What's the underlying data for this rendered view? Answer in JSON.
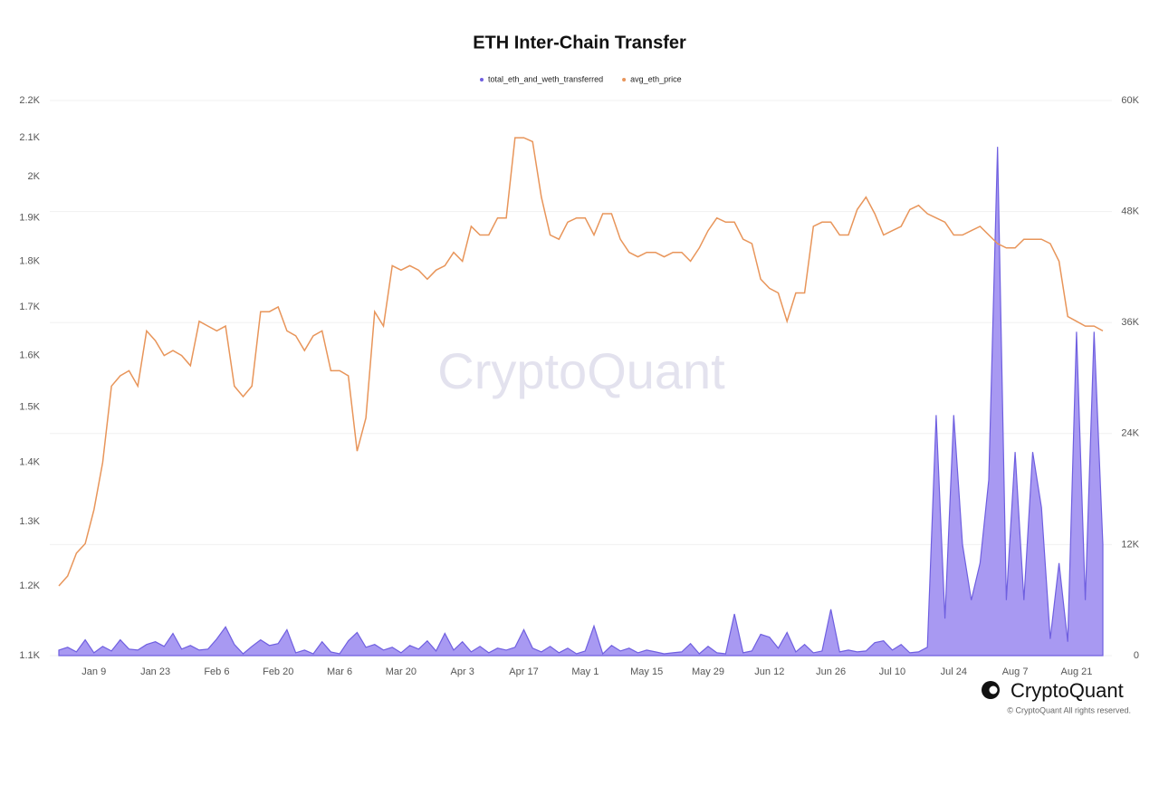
{
  "chart_data": {
    "type": "line-area",
    "title": "ETH Inter-Chain Transfer",
    "watermark": "CryptoQuant",
    "brand": "CryptoQuant",
    "copyright": "© CryptoQuant All rights reserved.",
    "yscale": "log",
    "grid": true,
    "legend": "top",
    "categories": [
      null,
      null,
      null,
      null,
      "Jan 9",
      null,
      null,
      null,
      null,
      null,
      null,
      "Jan 23",
      null,
      null,
      null,
      null,
      null,
      null,
      "Feb 6",
      null,
      null,
      null,
      null,
      null,
      null,
      "Feb 20",
      null,
      null,
      null,
      null,
      null,
      null,
      "Mar 6",
      null,
      null,
      null,
      null,
      null,
      null,
      "Mar 20",
      null,
      null,
      null,
      null,
      null,
      null,
      "Apr 3",
      null,
      null,
      null,
      null,
      null,
      null,
      "Apr 17",
      null,
      null,
      null,
      null,
      null,
      null,
      "May 1",
      null,
      null,
      null,
      null,
      null,
      null,
      "May 15",
      null,
      null,
      null,
      null,
      null,
      null,
      "May 29",
      null,
      null,
      null,
      null,
      null,
      null,
      "Jun 12",
      null,
      null,
      null,
      null,
      null,
      null,
      "Jun 26",
      null,
      null,
      null,
      null,
      null,
      null,
      "Jul 10",
      null,
      null,
      null,
      null,
      null,
      null,
      "Jul 24",
      null,
      null,
      null,
      null,
      null,
      null,
      "Aug 7",
      null,
      null,
      null,
      null,
      null,
      null,
      "Aug 21",
      null,
      null,
      null
    ],
    "ylim": [
      1100,
      2200
    ],
    "yticks": [
      {
        "value": 1100,
        "label": "1.1K"
      },
      {
        "value": 1200,
        "label": "1.2K"
      },
      {
        "value": 1300,
        "label": "1.3K"
      },
      {
        "value": 1400,
        "label": "1.4K"
      },
      {
        "value": 1500,
        "label": "1.5K"
      },
      {
        "value": 1600,
        "label": "1.6K"
      },
      {
        "value": 1700,
        "label": "1.7K"
      },
      {
        "value": 1800,
        "label": "1.8K"
      },
      {
        "value": 1900,
        "label": "1.9K"
      },
      {
        "value": 2000,
        "label": "2K"
      },
      {
        "value": 2100,
        "label": "2.1K"
      },
      {
        "value": 2200,
        "label": "2.2K"
      }
    ],
    "y2lim": [
      0,
      60000
    ],
    "y2ticks": [
      0,
      {
        "value": 12000,
        "label": "12K"
      },
      {
        "value": 24000,
        "label": "24K"
      },
      {
        "value": 36000,
        "label": "36K"
      },
      {
        "value": 48000,
        "label": "48K"
      },
      {
        "value": 60000,
        "label": "60K"
      }
    ],
    "series": [
      {
        "name": "total_eth_and_weth_transferred",
        "color": "#6f5fe0",
        "fill": "#a899f2",
        "axis": "y2",
        "values": [
          600,
          900,
          400,
          1700,
          300,
          1000,
          500,
          1700,
          700,
          600,
          1200,
          1500,
          1000,
          2400,
          700,
          1100,
          600,
          700,
          1800,
          3100,
          1200,
          200,
          1000,
          1700,
          1100,
          1300,
          2800,
          300,
          600,
          200,
          1500,
          400,
          200,
          1600,
          2500,
          900,
          1200,
          600,
          900,
          300,
          1100,
          700,
          1600,
          500,
          2400,
          600,
          1500,
          400,
          1000,
          300,
          800,
          600,
          900,
          2800,
          800,
          400,
          1000,
          300,
          800,
          200,
          500,
          3200,
          200,
          1100,
          500,
          800,
          300,
          600,
          400,
          200,
          300,
          400,
          1300,
          200,
          1000,
          300,
          200,
          4500,
          300,
          500,
          2300,
          2000,
          800,
          2500,
          400,
          1200,
          300,
          500,
          5000,
          400,
          600,
          400,
          500,
          1400,
          1600,
          600,
          1200,
          300,
          400,
          900,
          26000,
          4000,
          26000,
          12000,
          6000,
          10000,
          19000,
          55000,
          6000,
          22000,
          6000,
          22000,
          16000,
          1800,
          10000,
          1500,
          35000,
          6000,
          35000,
          12000
        ]
      },
      {
        "name": "avg_eth_price",
        "color": "#e8955a",
        "axis": "y",
        "values": [
          1200,
          1215,
          1250,
          1265,
          1320,
          1400,
          1540,
          1560,
          1570,
          1540,
          1650,
          1630,
          1600,
          1610,
          1600,
          1580,
          1670,
          1660,
          1650,
          1660,
          1540,
          1520,
          1540,
          1690,
          1690,
          1700,
          1650,
          1640,
          1610,
          1640,
          1650,
          1570,
          1570,
          1560,
          1420,
          1480,
          1690,
          1660,
          1790,
          1780,
          1790,
          1780,
          1760,
          1780,
          1790,
          1820,
          1800,
          1880,
          1860,
          1860,
          1900,
          1900,
          2100,
          2100,
          2090,
          1950,
          1860,
          1850,
          1890,
          1900,
          1900,
          1860,
          1910,
          1910,
          1850,
          1820,
          1810,
          1820,
          1820,
          1810,
          1820,
          1820,
          1800,
          1830,
          1870,
          1900,
          1890,
          1890,
          1850,
          1840,
          1760,
          1740,
          1730,
          1670,
          1730,
          1730,
          1880,
          1890,
          1890,
          1860,
          1860,
          1920,
          1950,
          1910,
          1860,
          1870,
          1880,
          1920,
          1930,
          1910,
          1900,
          1890,
          1860,
          1860,
          1870,
          1880,
          1860,
          1840,
          1830,
          1830,
          1850,
          1850,
          1850,
          1840,
          1800,
          1680,
          1670,
          1660,
          1660,
          1650
        ]
      }
    ]
  }
}
